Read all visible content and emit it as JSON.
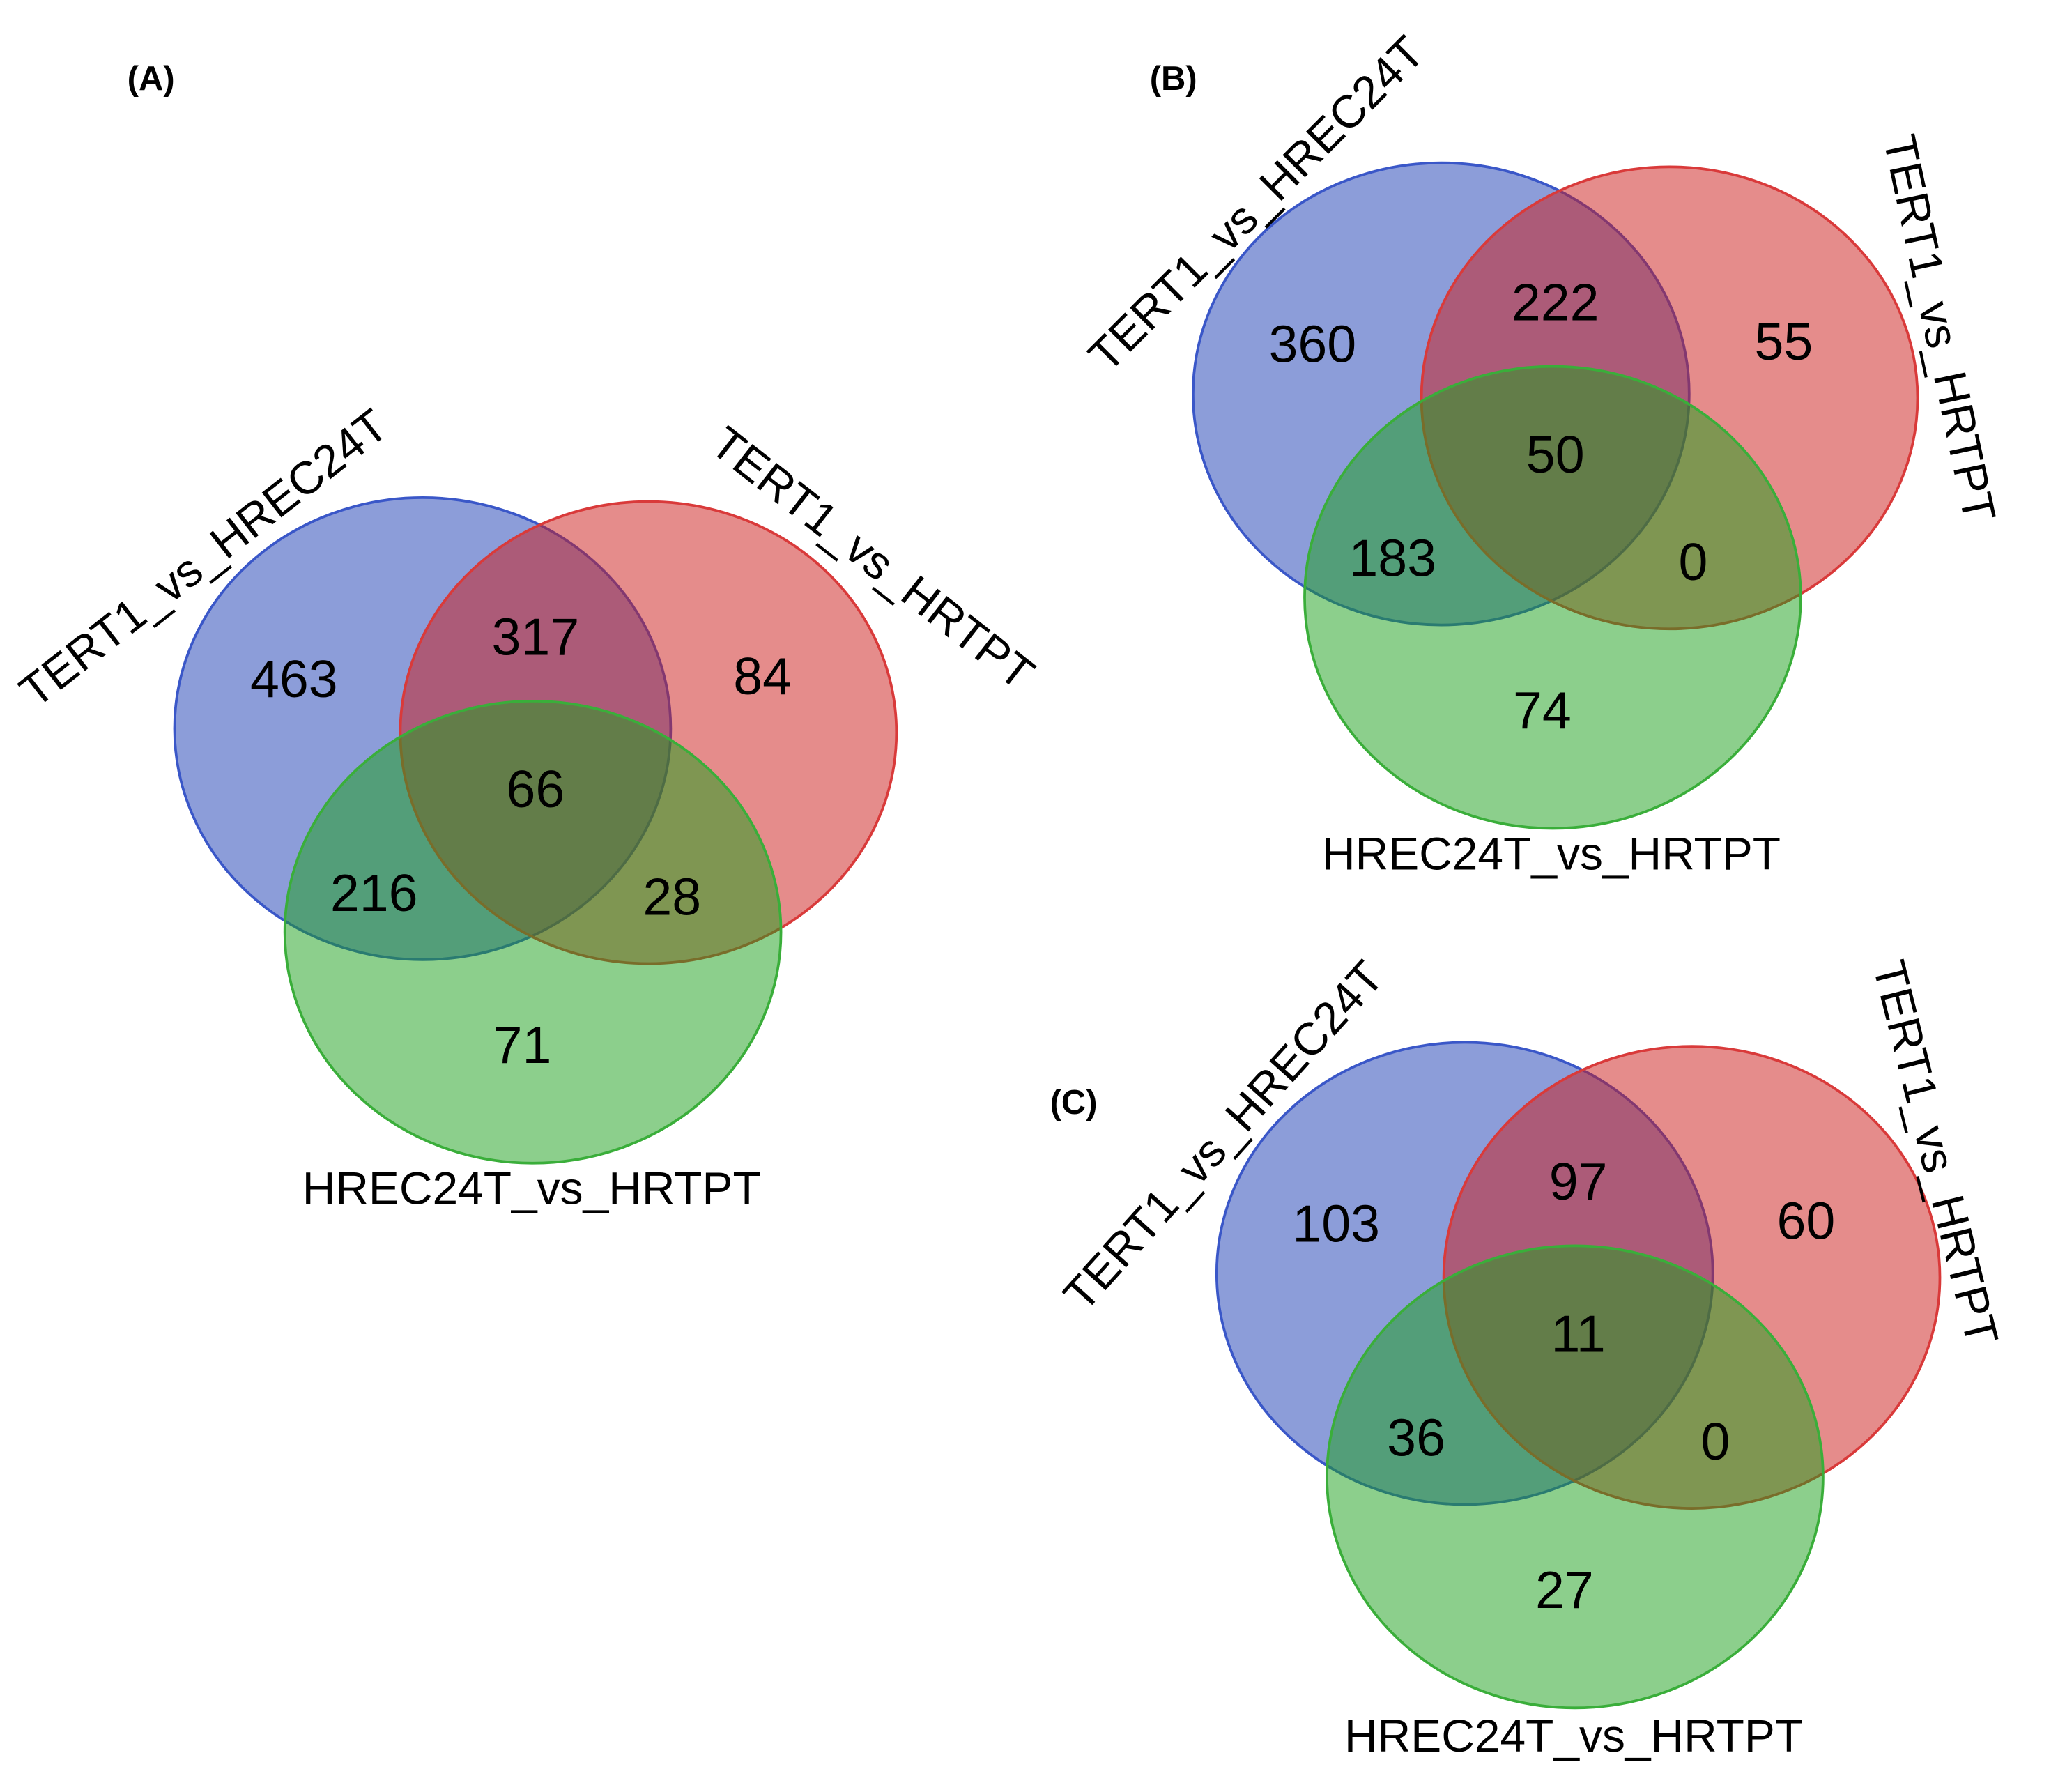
{
  "colors": {
    "set1": "#1a3cb4",
    "set2": "#cc1a18",
    "set3": "#1aa01a"
  },
  "panels": [
    {
      "label": "(A)",
      "sets": [
        "TERT1_vs_HREC24T",
        "TERT1_vs_HRTPT",
        "HREC24T_vs_HRTPT"
      ],
      "regions": {
        "only1": "463",
        "only2": "84",
        "only3": "71",
        "s12": "317",
        "s13": "216",
        "s23": "28",
        "s123": "66"
      }
    },
    {
      "label": "(B)",
      "sets": [
        "TERT1_vs_HREC24T",
        "TERT1_vs_HRTPT",
        "HREC24T_vs_HRTPT"
      ],
      "regions": {
        "only1": "360",
        "only2": "55",
        "only3": "74",
        "s12": "222",
        "s13": "183",
        "s23": "0",
        "s123": "50"
      }
    },
    {
      "label": "(C)",
      "sets": [
        "TERT1_vs_HREC24T",
        "TERT1_vs_HRTPT",
        "HREC24T_vs_HRTPT"
      ],
      "regions": {
        "only1": "103",
        "only2": "60",
        "only3": "27",
        "s12": "97",
        "s13": "36",
        "s23": "0",
        "s123": "11"
      }
    }
  ]
}
